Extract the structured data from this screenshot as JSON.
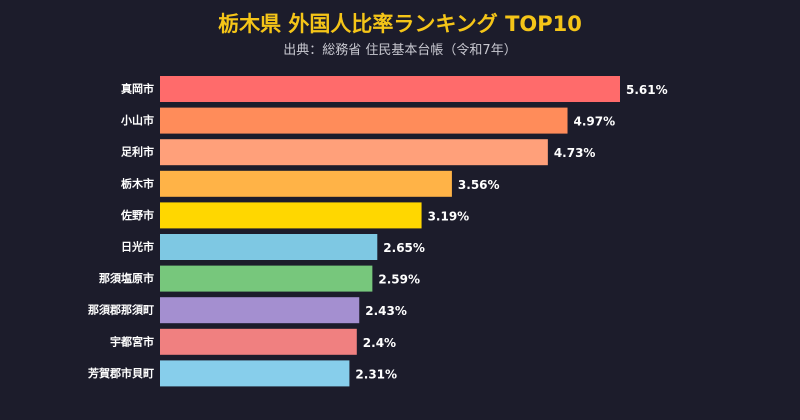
{
  "chart_data": {
    "type": "bar",
    "orientation": "horizontal",
    "title": "栃木県 外国人比率ランキング TOP10",
    "subtitle": "出典：総務省 住民基本台帳（令和7年）",
    "categories": [
      "真岡市",
      "小山市",
      "足利市",
      "栃木市",
      "佐野市",
      "日光市",
      "那須塩原市",
      "那須郡那須町",
      "宇都宮市",
      "芳賀郡市貝町"
    ],
    "values": [
      5.61,
      4.97,
      4.73,
      3.56,
      3.19,
      2.65,
      2.59,
      2.43,
      2.4,
      2.31
    ],
    "value_labels": [
      "5.61%",
      "4.97%",
      "4.73%",
      "3.56%",
      "3.19%",
      "2.65%",
      "2.59%",
      "2.43%",
      "2.4%",
      "2.31%"
    ],
    "colors": [
      "#ff6b6b",
      "#ff8c5a",
      "#ffa07a",
      "#ffb347",
      "#ffd700",
      "#7ec8e3",
      "#77c77c",
      "#a48fd0",
      "#f08080",
      "#87ceeb"
    ],
    "xlabel": "",
    "ylabel": "",
    "xlim": [
      0,
      5.61
    ],
    "grid": false,
    "legend": "none"
  }
}
